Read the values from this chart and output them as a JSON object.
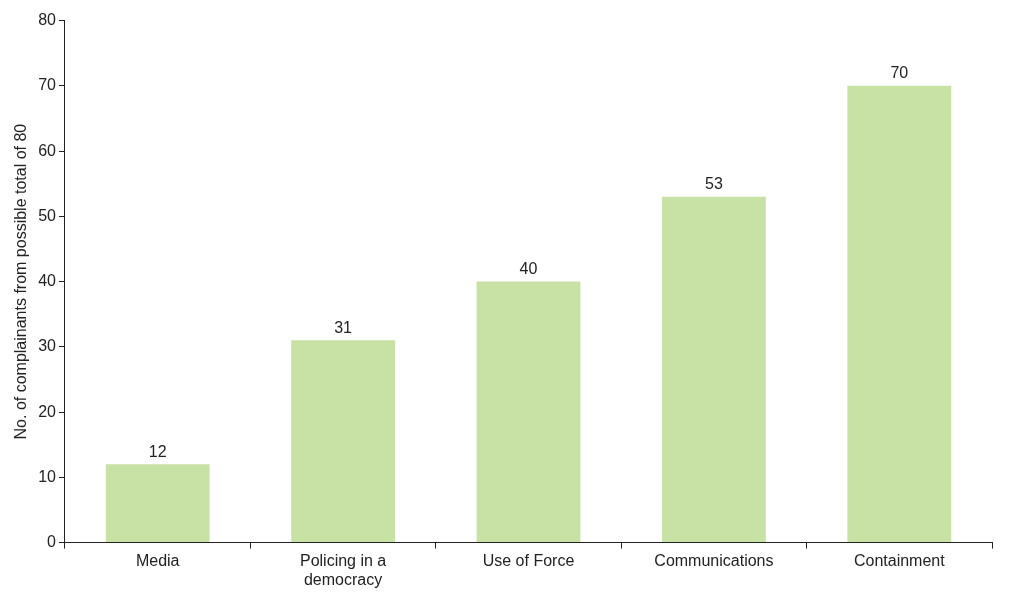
{
  "chart_data": {
    "type": "bar",
    "ylabel": "No. of complainants from possible total of 80",
    "categories": [
      "Media",
      "Policing in a democracy",
      "Use of Force",
      "Communications",
      "Containment"
    ],
    "values": [
      12,
      31,
      40,
      53,
      70
    ],
    "color": "#c8e2a5",
    "ylim": [
      0,
      80
    ],
    "yticks": [
      0,
      10,
      20,
      30,
      40,
      50,
      60,
      70,
      80
    ],
    "grid": false,
    "data_labels": true,
    "legend": false
  }
}
